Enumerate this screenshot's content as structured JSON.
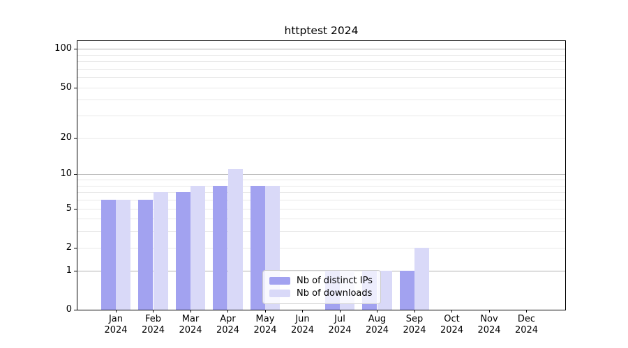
{
  "chart_data": {
    "type": "bar",
    "title": "httptest 2024",
    "scale": "log1p",
    "categories": [
      "Jan",
      "Feb",
      "Mar",
      "Apr",
      "May",
      "Jun",
      "Jul",
      "Aug",
      "Sep",
      "Oct",
      "Nov",
      "Dec"
    ],
    "category_year": "2024",
    "series": [
      {
        "name": "Nb of distinct IPs",
        "color": "#a2a2f0",
        "values": [
          6,
          6,
          7,
          8,
          8,
          0,
          1,
          1,
          1,
          0,
          0,
          0
        ]
      },
      {
        "name": "Nb of downloads",
        "color": "#d9d9f8",
        "values": [
          6,
          7,
          8,
          11,
          8,
          0,
          1,
          1,
          2,
          0,
          0,
          0
        ]
      }
    ],
    "xlabel": "",
    "ylabel": "",
    "ylim": [
      0,
      115
    ],
    "y_ticks": [
      100,
      50,
      20,
      10,
      5,
      2,
      1,
      0
    ],
    "y_major_gridlines": [
      1,
      10,
      100
    ],
    "y_minor_gridlines": [
      2,
      3,
      4,
      5,
      6,
      7,
      8,
      9,
      20,
      30,
      40,
      50,
      60,
      70,
      80,
      90
    ],
    "grid": true,
    "legend_position": "lower center"
  },
  "colors": {
    "background": "#ffffff",
    "axis": "#000000",
    "text": "#000000",
    "major_gridline": "#b0b0b0",
    "minor_gridline": "#e8e8e8",
    "legend_border": "#cccccc"
  }
}
